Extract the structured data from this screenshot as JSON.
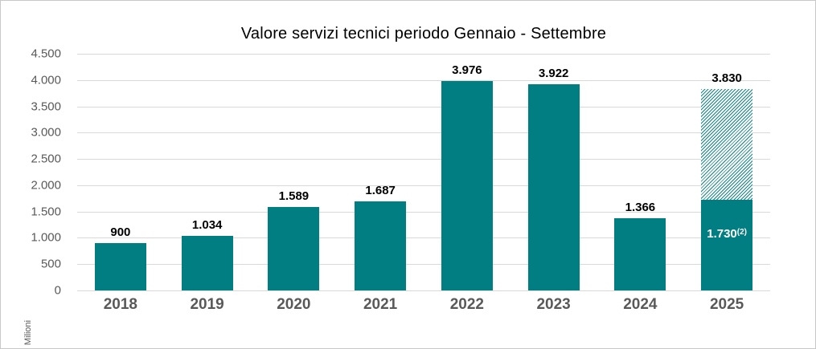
{
  "frame": {
    "background": "#ffffff",
    "border_color": "#c8c8c8"
  },
  "chart_data": {
    "type": "bar",
    "title": "Valore servizi tecnici periodo Gennaio - Settembre",
    "xlabel": "",
    "ylabel": "Milioni",
    "ylim": [
      0,
      4500
    ],
    "y_tick_step": 500,
    "y_tick_labels": [
      "4.500",
      "4.000",
      "3.500",
      "3.000",
      "2.500",
      "2.000",
      "1.500",
      "1.000",
      "500",
      "0"
    ],
    "grid": true,
    "legend_position": "none",
    "categories": [
      "2018",
      "2019",
      "2020",
      "2021",
      "2022",
      "2023",
      "2024",
      "2025"
    ],
    "values": [
      900,
      1034,
      1589,
      1687,
      3976,
      3922,
      1366,
      3830
    ],
    "value_labels": [
      "900",
      "1.034",
      "1.589",
      "1.687",
      "3.976",
      "3.922",
      "1.366",
      "3.830"
    ],
    "stacked_segment": {
      "category": "2025",
      "solid_value": 1730,
      "solid_label": "1.730",
      "solid_label_superscript": "(2)",
      "hatched_from": 1730,
      "hatched_to": 3830,
      "hatch_style": "diagonal-lines",
      "total_label": "3.830"
    },
    "colors": {
      "bar": "#007E82",
      "hatch_line": "#12858A",
      "hatch_background": "#FFFFFF",
      "gridline": "#D9D9D9",
      "axis_text": "#595959",
      "value_label": "#000000",
      "inner_label": "#FFFFFF",
      "title_text": "#000000"
    }
  }
}
